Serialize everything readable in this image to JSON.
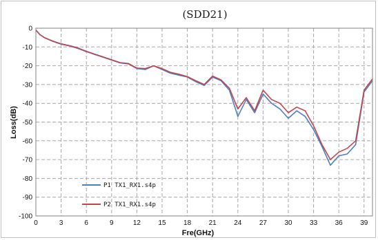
{
  "chart_data": {
    "type": "line",
    "title": "(SDD21)",
    "xlabel": "Fre(GHz)",
    "ylabel": "Loss(dB)",
    "xlim": [
      0,
      40
    ],
    "ylim": [
      -100,
      0
    ],
    "x_ticks": [
      0,
      3,
      6,
      9,
      12,
      15,
      18,
      21,
      24,
      27,
      30,
      33,
      36,
      39
    ],
    "y_ticks": [
      0,
      -10,
      -20,
      -30,
      -40,
      -50,
      -60,
      -70,
      -80,
      -90,
      -100
    ],
    "grid": true,
    "legend_position": "bottom-left",
    "series": [
      {
        "name": "P1 TX1_RX1.s4p",
        "color": "#4a7fc0",
        "x": [
          0,
          0.5,
          1,
          2,
          3,
          4,
          5,
          6,
          7,
          8,
          9,
          10,
          11,
          12,
          13,
          14,
          15,
          16,
          17,
          18,
          19,
          20,
          21,
          22,
          23,
          24,
          25,
          26,
          27,
          28,
          29,
          30,
          31,
          32,
          33,
          34,
          35,
          36,
          37,
          38,
          39,
          40
        ],
        "y": [
          -1,
          -3.5,
          -5,
          -7,
          -8.5,
          -9.5,
          -10.8,
          -12.5,
          -14,
          -15.5,
          -17,
          -18.5,
          -19,
          -21.5,
          -22,
          -20,
          -22,
          -24,
          -25,
          -26,
          -28.5,
          -30.5,
          -26,
          -28,
          -33,
          -47,
          -38,
          -45,
          -35,
          -40,
          -43,
          -48,
          -44,
          -47,
          -54,
          -63,
          -73,
          -68,
          -67,
          -62,
          -34,
          -28
        ]
      },
      {
        "name": "P2 TX1_RX1.s4p",
        "color": "#c0454f",
        "x": [
          0,
          0.5,
          1,
          2,
          3,
          4,
          5,
          6,
          7,
          8,
          9,
          10,
          11,
          12,
          13,
          14,
          15,
          16,
          17,
          18,
          19,
          20,
          21,
          22,
          23,
          24,
          25,
          26,
          27,
          28,
          29,
          30,
          31,
          32,
          33,
          34,
          35,
          36,
          37,
          38,
          39,
          40
        ],
        "y": [
          -1,
          -3.5,
          -5,
          -6.8,
          -8.3,
          -9.3,
          -10.5,
          -12.3,
          -13.8,
          -15.3,
          -16.8,
          -18.3,
          -18.8,
          -21.3,
          -21.5,
          -20,
          -21.5,
          -23.5,
          -24.5,
          -25.8,
          -28,
          -30,
          -25.5,
          -27.5,
          -32,
          -43,
          -37,
          -44,
          -33,
          -38,
          -40,
          -45,
          -42,
          -44,
          -52,
          -62,
          -70,
          -66,
          -64,
          -60,
          -33,
          -27
        ]
      }
    ]
  }
}
